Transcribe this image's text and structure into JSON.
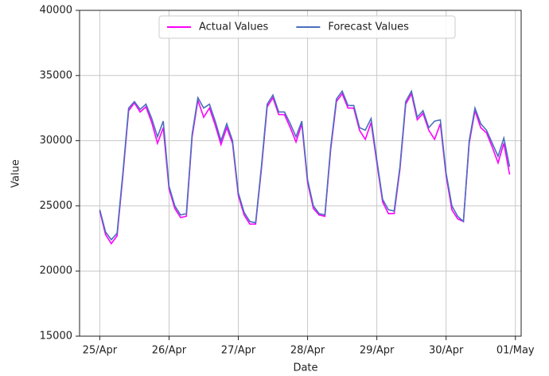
{
  "chart_data": {
    "type": "line",
    "x_label": "Date",
    "y_label": "Value",
    "x": [
      0,
      2,
      4,
      6,
      8,
      10,
      12,
      14,
      16,
      18,
      20,
      22,
      24,
      26,
      28,
      30,
      32,
      34,
      36,
      38,
      40,
      42,
      44,
      46,
      48,
      50,
      52,
      54,
      56,
      58,
      60,
      62,
      64,
      66,
      68,
      70,
      72,
      74,
      76,
      78,
      80,
      82,
      84,
      86,
      88,
      90,
      92,
      94,
      96,
      98,
      100,
      102,
      104,
      106,
      108,
      110,
      112,
      114,
      116,
      118,
      120,
      122,
      124,
      126,
      128,
      130,
      132,
      134,
      136,
      138,
      140,
      142
    ],
    "series": [
      {
        "name": "Actual Values",
        "color": "#ff00ff",
        "values": [
          24600,
          22800,
          22100,
          22700,
          27300,
          32300,
          32900,
          32200,
          32600,
          31400,
          29800,
          31000,
          26300,
          24800,
          24100,
          24200,
          30300,
          33100,
          31800,
          32500,
          31200,
          29700,
          31000,
          29800,
          25800,
          24300,
          23600,
          23600,
          27800,
          32600,
          33300,
          32000,
          32000,
          31000,
          29900,
          31300,
          26800,
          24800,
          24300,
          24200,
          29300,
          33000,
          33600,
          32500,
          32500,
          30800,
          30100,
          31400,
          28300,
          25300,
          24400,
          24400,
          27800,
          32800,
          33600,
          31600,
          32100,
          30800,
          30100,
          31300,
          27300,
          24700,
          24000,
          23800,
          29800,
          32300,
          31000,
          30600,
          29500,
          28300,
          29800,
          27400
        ]
      },
      {
        "name": "Forecast Values",
        "color": "#4a6fbd",
        "values": [
          24700,
          23000,
          22400,
          22900,
          27500,
          32500,
          33000,
          32400,
          32800,
          31700,
          30300,
          31500,
          26500,
          25000,
          24300,
          24400,
          30500,
          33300,
          32500,
          32800,
          31500,
          30000,
          31300,
          30000,
          26000,
          24500,
          23800,
          23700,
          28000,
          32800,
          33500,
          32200,
          32200,
          31300,
          30300,
          31500,
          27000,
          25000,
          24400,
          24300,
          29500,
          33200,
          33800,
          32700,
          32700,
          31000,
          30800,
          31700,
          28500,
          25500,
          24700,
          24600,
          28000,
          33000,
          33800,
          31800,
          32300,
          31000,
          31500,
          31600,
          27500,
          25000,
          24200,
          23800,
          30000,
          32500,
          31300,
          30800,
          29800,
          28800,
          30200,
          28000
        ]
      }
    ],
    "xlim": [
      -7,
      146
    ],
    "xticks": [
      {
        "value": 0,
        "label": "25/Apr"
      },
      {
        "value": 24,
        "label": "26/Apr"
      },
      {
        "value": 48,
        "label": "27/Apr"
      },
      {
        "value": 72,
        "label": "28/Apr"
      },
      {
        "value": 96,
        "label": "29/Apr"
      },
      {
        "value": 120,
        "label": "30/Apr"
      },
      {
        "value": 144,
        "label": "01/May"
      }
    ],
    "ylim": [
      15000,
      40000
    ],
    "yticks": [
      15000,
      20000,
      25000,
      30000,
      35000,
      40000
    ],
    "grid": true,
    "legend": "top"
  }
}
